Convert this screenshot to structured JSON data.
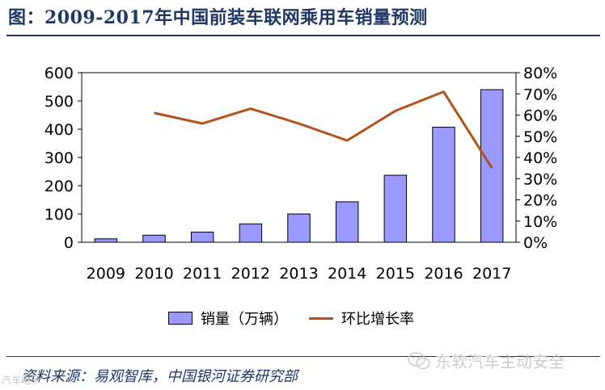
{
  "header": {
    "title": "图：2009-2017年中国前装车联网乘用车销量预测"
  },
  "footer": {
    "source": "资料来源：易观智库，中国银河证券研究部",
    "watermark_text": "东软汽车主动安全",
    "corner_text": "汽车电子"
  },
  "chart_data": {
    "type": "bar",
    "categories": [
      "2009",
      "2010",
      "2011",
      "2012",
      "2013",
      "2014",
      "2015",
      "2016",
      "2017"
    ],
    "series": [
      {
        "name": "销量（万辆）",
        "type": "bar",
        "axis": "left",
        "color": "#9999ff",
        "values": [
          12,
          25,
          36,
          65,
          100,
          143,
          237,
          407,
          540
        ]
      },
      {
        "name": "环比增长率",
        "type": "line",
        "axis": "right",
        "color": "#b5521b",
        "values": [
          null,
          0.61,
          0.56,
          0.63,
          0.56,
          0.48,
          0.62,
          0.71,
          0.35
        ]
      }
    ],
    "y_left": {
      "ylim": [
        0,
        600
      ],
      "ticks": [
        "0",
        "100",
        "200",
        "300",
        "400",
        "500",
        "600"
      ]
    },
    "y_right": {
      "ylim": [
        0,
        0.8
      ],
      "ticks": [
        "0%",
        "10%",
        "20%",
        "30%",
        "40%",
        "50%",
        "60%",
        "70%",
        "80%"
      ]
    },
    "grid": false,
    "legend": "bottom"
  }
}
